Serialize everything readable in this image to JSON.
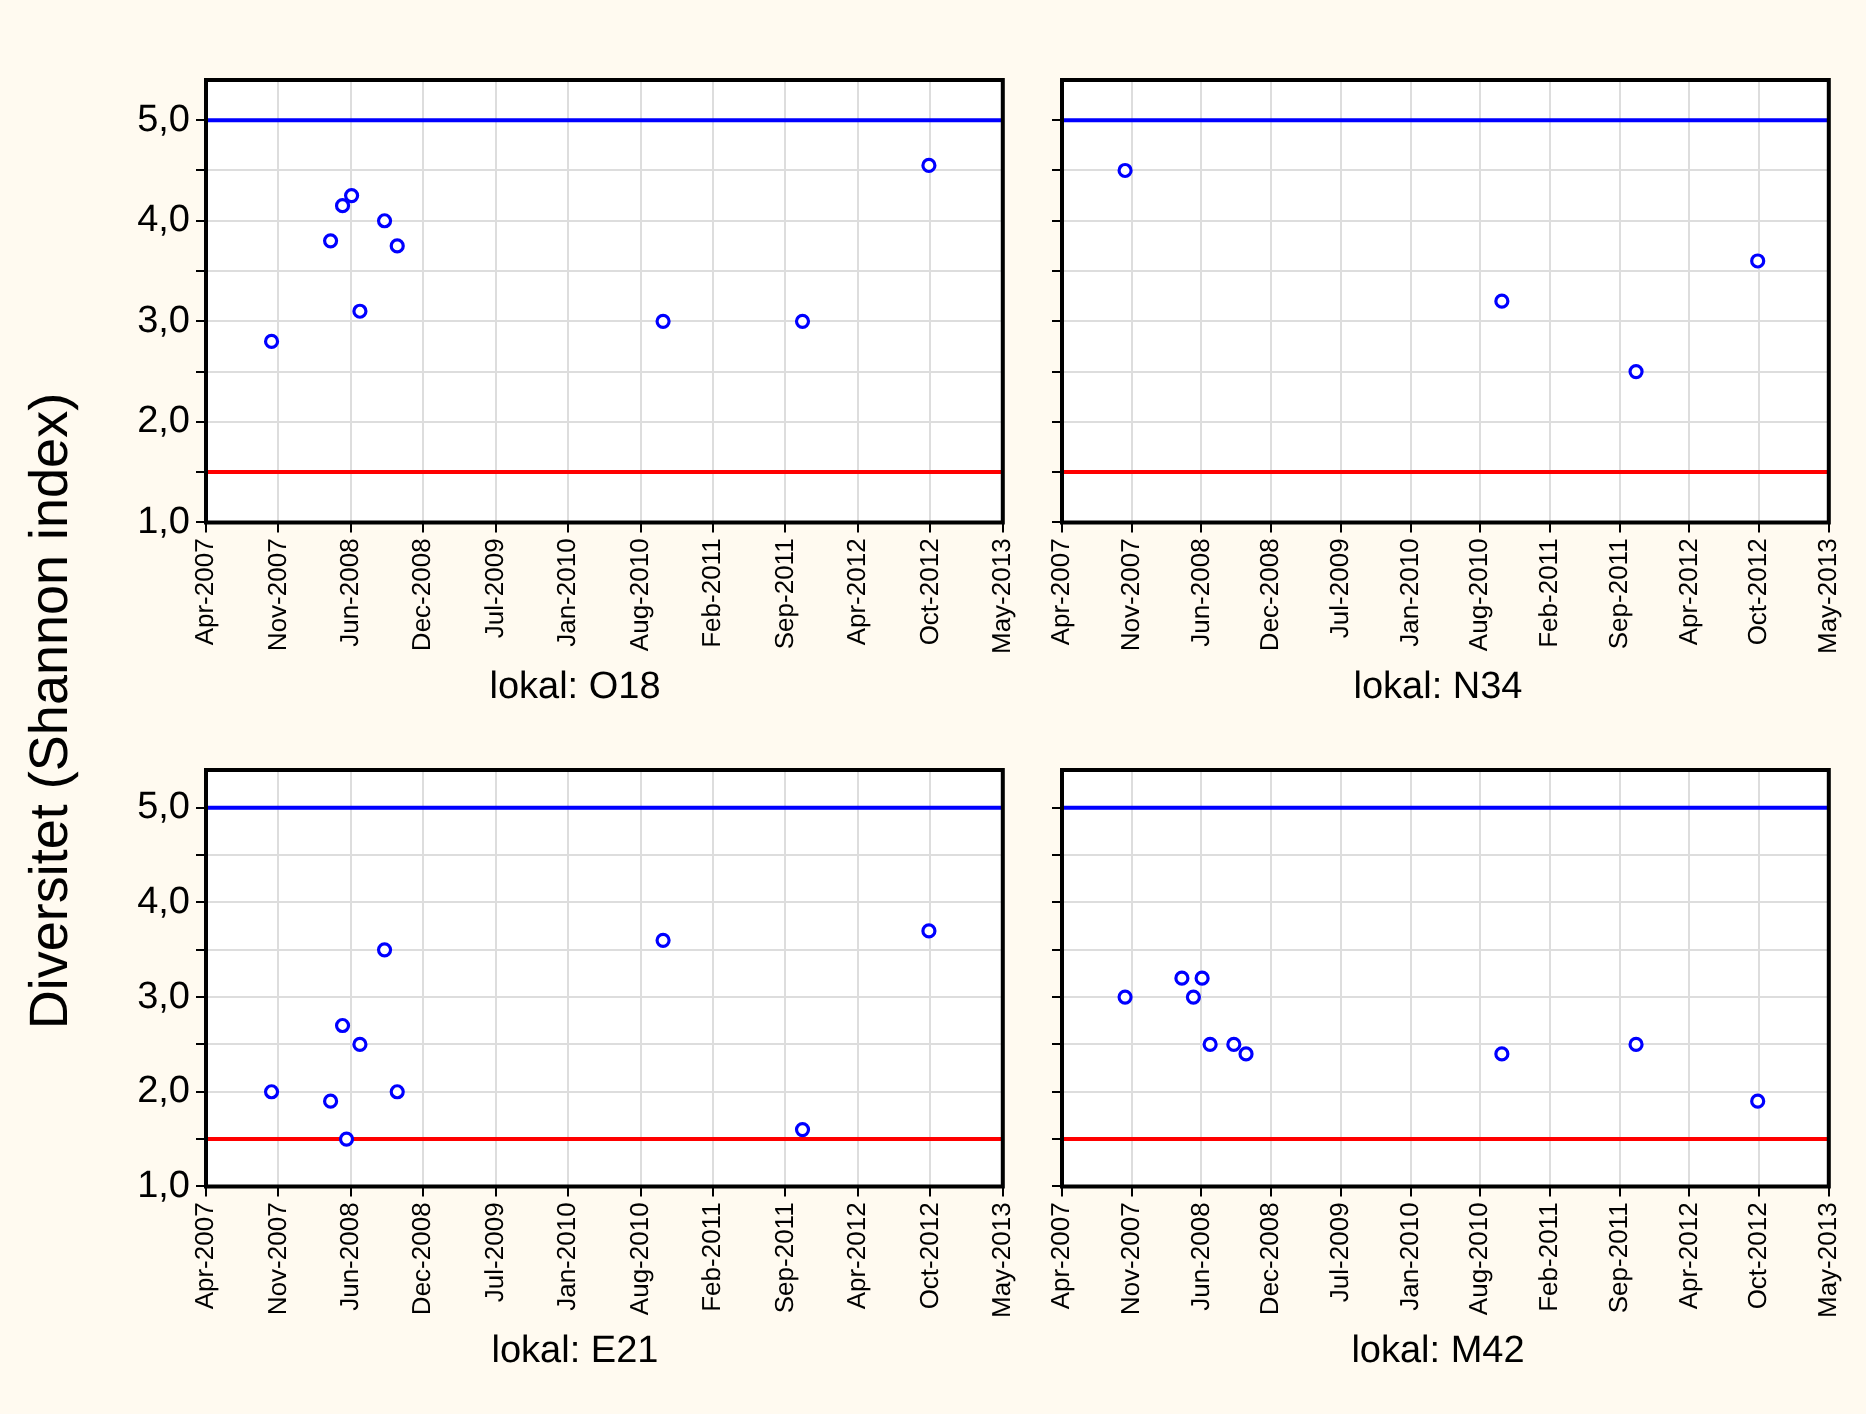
{
  "chart_data": [
    {
      "type": "scatter",
      "xlabel": "lokal: O18",
      "ylabel": "Diversitet (Shannon index)",
      "x": [
        "2007-10-26",
        "2008-04-06",
        "2008-05-09",
        "2008-06-03",
        "2008-06-26",
        "2008-09-02",
        "2008-10-07",
        "2010-10-11",
        "2011-10-31",
        "2012-10-14"
      ],
      "series": [
        {
          "color": "#0000ff",
          "values": [
            2.8,
            3.8,
            4.15,
            4.25,
            3.1,
            4.0,
            3.75,
            3.0,
            3.0,
            4.55
          ]
        }
      ],
      "xlim": [
        "2007-04-28",
        "2013-05-06"
      ],
      "xticks": [
        {
          "value": "2007-04-28",
          "label": "Apr-2007"
        },
        {
          "value": "2007-11-14",
          "label": "Nov-2007"
        },
        {
          "value": "2008-06-01",
          "label": "Jun-2008"
        },
        {
          "value": "2008-12-18",
          "label": "Dec-2008"
        },
        {
          "value": "2009-07-06",
          "label": "Jul-2009"
        },
        {
          "value": "2010-01-22",
          "label": "Jan-2010"
        },
        {
          "value": "2010-08-10",
          "label": "Aug-2010"
        },
        {
          "value": "2011-02-26",
          "label": "Feb-2011"
        },
        {
          "value": "2011-09-14",
          "label": "Sep-2011"
        },
        {
          "value": "2012-04-01",
          "label": "Apr-2012"
        },
        {
          "value": "2012-10-18",
          "label": "Oct-2012"
        },
        {
          "value": "2013-05-06",
          "label": "May-2013"
        }
      ],
      "ylim": [
        1,
        5.4
      ],
      "yticks": [
        {
          "value": 1,
          "label": "1,0"
        },
        {
          "value": 1.5,
          "label": null
        },
        {
          "value": 2,
          "label": "2,0"
        },
        {
          "value": 2.5,
          "label": null
        },
        {
          "value": 3,
          "label": "3,0"
        },
        {
          "value": 3.5,
          "label": null
        },
        {
          "value": 4,
          "label": "4,0"
        },
        {
          "value": 4.5,
          "label": null
        },
        {
          "value": 5,
          "label": "5,0"
        }
      ],
      "grid": true,
      "marker": "circle",
      "ref_lines": [
        {
          "axis": "y",
          "value": 5,
          "color": "#0000ff"
        },
        {
          "axis": "y",
          "value": 1.5,
          "color": "#ff0000"
        }
      ]
    },
    {
      "type": "scatter",
      "xlabel": "lokal: N34",
      "x": [
        "2007-10-26",
        "2010-10-11",
        "2011-10-31",
        "2012-10-14"
      ],
      "series": [
        {
          "color": "#0000ff",
          "values": [
            4.5,
            3.2,
            2.5,
            3.6
          ]
        }
      ],
      "xlim": [
        "2007-04-28",
        "2013-05-06"
      ],
      "xticks": [
        {
          "value": "2007-04-28",
          "label": "Apr-2007"
        },
        {
          "value": "2007-11-14",
          "label": "Nov-2007"
        },
        {
          "value": "2008-06-01",
          "label": "Jun-2008"
        },
        {
          "value": "2008-12-18",
          "label": "Dec-2008"
        },
        {
          "value": "2009-07-06",
          "label": "Jul-2009"
        },
        {
          "value": "2010-01-22",
          "label": "Jan-2010"
        },
        {
          "value": "2010-08-10",
          "label": "Aug-2010"
        },
        {
          "value": "2011-02-26",
          "label": "Feb-2011"
        },
        {
          "value": "2011-09-14",
          "label": "Sep-2011"
        },
        {
          "value": "2012-04-01",
          "label": "Apr-2012"
        },
        {
          "value": "2012-10-18",
          "label": "Oct-2012"
        },
        {
          "value": "2013-05-06",
          "label": "May-2013"
        }
      ],
      "ylim": [
        1,
        5.4
      ],
      "yticks": [
        {
          "value": 1,
          "label": null
        },
        {
          "value": 1.5,
          "label": null
        },
        {
          "value": 2,
          "label": null
        },
        {
          "value": 2.5,
          "label": null
        },
        {
          "value": 3,
          "label": null
        },
        {
          "value": 3.5,
          "label": null
        },
        {
          "value": 4,
          "label": null
        },
        {
          "value": 4.5,
          "label": null
        },
        {
          "value": 5,
          "label": null
        }
      ],
      "tick_labels": "x",
      "grid": true,
      "marker": "circle",
      "ref_lines": [
        {
          "axis": "y",
          "value": 5,
          "color": "#0000ff"
        },
        {
          "axis": "y",
          "value": 1.5,
          "color": "#ff0000"
        }
      ]
    },
    {
      "type": "scatter",
      "xlabel": "lokal: E21",
      "x": [
        "2007-10-26",
        "2008-04-06",
        "2008-05-09",
        "2008-05-20",
        "2008-06-26",
        "2008-09-02",
        "2008-10-07",
        "2010-10-11",
        "2011-10-31",
        "2012-10-14"
      ],
      "series": [
        {
          "color": "#0000ff",
          "values": [
            2.0,
            1.9,
            2.7,
            1.5,
            2.5,
            3.5,
            2.0,
            3.6,
            1.6,
            3.7
          ]
        }
      ],
      "xlim": [
        "2007-04-28",
        "2013-05-06"
      ],
      "xticks": [
        {
          "value": "2007-04-28",
          "label": "Apr-2007"
        },
        {
          "value": "2007-11-14",
          "label": "Nov-2007"
        },
        {
          "value": "2008-06-01",
          "label": "Jun-2008"
        },
        {
          "value": "2008-12-18",
          "label": "Dec-2008"
        },
        {
          "value": "2009-07-06",
          "label": "Jul-2009"
        },
        {
          "value": "2010-01-22",
          "label": "Jan-2010"
        },
        {
          "value": "2010-08-10",
          "label": "Aug-2010"
        },
        {
          "value": "2011-02-26",
          "label": "Feb-2011"
        },
        {
          "value": "2011-09-14",
          "label": "Sep-2011"
        },
        {
          "value": "2012-04-01",
          "label": "Apr-2012"
        },
        {
          "value": "2012-10-18",
          "label": "Oct-2012"
        },
        {
          "value": "2013-05-06",
          "label": "May-2013"
        }
      ],
      "ylim": [
        1,
        5.4
      ],
      "yticks": [
        {
          "value": 1,
          "label": "1,0"
        },
        {
          "value": 1.5,
          "label": null
        },
        {
          "value": 2,
          "label": "2,0"
        },
        {
          "value": 2.5,
          "label": null
        },
        {
          "value": 3,
          "label": "3,0"
        },
        {
          "value": 3.5,
          "label": null
        },
        {
          "value": 4,
          "label": "4,0"
        },
        {
          "value": 4.5,
          "label": null
        },
        {
          "value": 5,
          "label": "5,0"
        }
      ],
      "grid": true,
      "marker": "circle",
      "ref_lines": [
        {
          "axis": "y",
          "value": 5,
          "color": "#0000ff"
        },
        {
          "axis": "y",
          "value": 1.5,
          "color": "#ff0000"
        }
      ]
    },
    {
      "type": "scatter",
      "xlabel": "lokal: M42",
      "x": [
        "2007-10-26",
        "2008-04-06",
        "2008-05-09",
        "2008-06-03",
        "2008-06-26",
        "2008-09-02",
        "2008-10-07",
        "2010-10-11",
        "2011-10-31",
        "2012-10-14"
      ],
      "series": [
        {
          "color": "#0000ff",
          "values": [
            3.0,
            3.2,
            3.0,
            3.2,
            2.5,
            2.5,
            2.4,
            2.4,
            2.5,
            1.9
          ]
        }
      ],
      "xlim": [
        "2007-04-28",
        "2013-05-06"
      ],
      "xticks": [
        {
          "value": "2007-04-28",
          "label": "Apr-2007"
        },
        {
          "value": "2007-11-14",
          "label": "Nov-2007"
        },
        {
          "value": "2008-06-01",
          "label": "Jun-2008"
        },
        {
          "value": "2008-12-18",
          "label": "Dec-2008"
        },
        {
          "value": "2009-07-06",
          "label": "Jul-2009"
        },
        {
          "value": "2010-01-22",
          "label": "Jan-2010"
        },
        {
          "value": "2010-08-10",
          "label": "Aug-2010"
        },
        {
          "value": "2011-02-26",
          "label": "Feb-2011"
        },
        {
          "value": "2011-09-14",
          "label": "Sep-2011"
        },
        {
          "value": "2012-04-01",
          "label": "Apr-2012"
        },
        {
          "value": "2012-10-18",
          "label": "Oct-2012"
        },
        {
          "value": "2013-05-06",
          "label": "May-2013"
        }
      ],
      "ylim": [
        1,
        5.4
      ],
      "yticks": [
        {
          "value": 1,
          "label": null
        },
        {
          "value": 1.5,
          "label": null
        },
        {
          "value": 2,
          "label": null
        },
        {
          "value": 2.5,
          "label": null
        },
        {
          "value": 3,
          "label": null
        },
        {
          "value": 3.5,
          "label": null
        },
        {
          "value": 4,
          "label": null
        },
        {
          "value": 4.5,
          "label": null
        },
        {
          "value": 5,
          "label": null
        }
      ],
      "tick_labels": "x",
      "grid": true,
      "marker": "circle",
      "ref_lines": [
        {
          "axis": "y",
          "value": 5,
          "color": "#0000ff"
        },
        {
          "axis": "y",
          "value": 1.5,
          "color": "#ff0000"
        }
      ]
    }
  ]
}
